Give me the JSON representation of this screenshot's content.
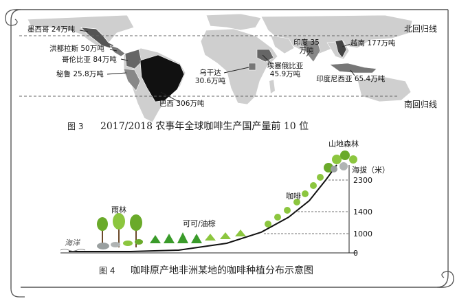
{
  "map": {
    "tropics": {
      "north": "北回归线",
      "south": "南回归线"
    },
    "producers": [
      {
        "id": "mexico",
        "label": "墨西哥 24万吨"
      },
      {
        "id": "honduras",
        "label": "洪都拉斯 50万吨"
      },
      {
        "id": "colombia",
        "label": "哥伦比亚 84万吨"
      },
      {
        "id": "peru",
        "label": "秘鲁 25.8万吨"
      },
      {
        "id": "brazil",
        "label": "巴西 306万吨"
      },
      {
        "id": "uganda",
        "label": "乌干达 30.6万吨"
      },
      {
        "id": "ethiopia",
        "label": "埃塞俄比亚 45.9万吨"
      },
      {
        "id": "india",
        "label": "印度 35万吨"
      },
      {
        "id": "vietnam",
        "label": "越南 177万吨"
      },
      {
        "id": "indonesia",
        "label": "印度尼西亚 65.4万吨"
      }
    ]
  },
  "figure3": {
    "number": "图 3",
    "title": "2017/2018 农事年全球咖啡生产国产量前 10 位"
  },
  "profile": {
    "zones": {
      "rainforest": "雨林",
      "cocoa_palm": "可可/油棕",
      "coffee": "咖啡",
      "montane_forest": "山地森林"
    },
    "ocean": "海洋",
    "altitude_title": "海拔（米）",
    "altitude_ticks": [
      "2300",
      "1400",
      "1000",
      "0"
    ]
  },
  "figure4": {
    "number": "图 4",
    "title": "咖啡原产地非洲某地的咖啡种植分布示意图"
  },
  "colors": {
    "coffee_tree": "#8cc63f",
    "rainforest_tree": "#6aaa2a",
    "land": "#cfcfcf",
    "top_producer": "#111111"
  }
}
